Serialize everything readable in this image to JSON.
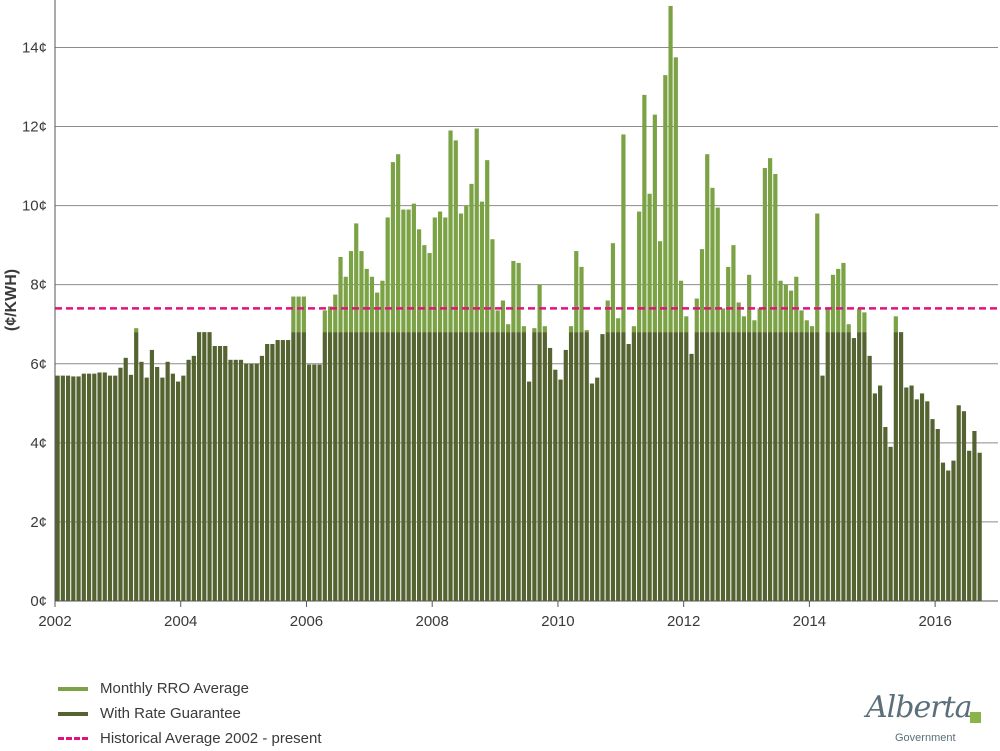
{
  "chart_data": {
    "type": "bar",
    "ylabel": "(¢/KWH)",
    "ylim": [
      0,
      15.2
    ],
    "xlim": [
      "2002-01",
      "2016-12"
    ],
    "y_ticks": [
      "0¢",
      "2¢",
      "4¢",
      "6¢",
      "8¢",
      "10¢",
      "12¢",
      "14¢"
    ],
    "x_ticks": [
      "2002",
      "2004",
      "2006",
      "2008",
      "2010",
      "2012",
      "2014",
      "2016"
    ],
    "grid": true,
    "legend_position": "bottom-left",
    "start_month": "2002-01",
    "series": [
      {
        "name": "Monthly RRO Average",
        "color": "#7ba245",
        "values": [
          5.7,
          5.7,
          5.7,
          5.68,
          5.68,
          5.75,
          5.75,
          5.75,
          5.78,
          5.78,
          5.7,
          5.7,
          5.9,
          6.15,
          5.72,
          6.9,
          6.05,
          5.65,
          6.35,
          5.92,
          5.65,
          6.05,
          5.75,
          5.55,
          5.7,
          6.1,
          6.2,
          6.8,
          6.8,
          6.8,
          6.45,
          6.45,
          6.45,
          6.1,
          6.1,
          6.1,
          6.0,
          6.0,
          6.0,
          6.2,
          6.5,
          6.5,
          6.6,
          6.6,
          6.6,
          7.7,
          7.7,
          7.7,
          5.98,
          5.98,
          5.98,
          7.35,
          7.45,
          7.75,
          8.7,
          8.2,
          8.85,
          9.55,
          8.85,
          8.4,
          8.2,
          7.8,
          8.1,
          9.7,
          11.1,
          11.3,
          9.9,
          9.9,
          10.05,
          9.4,
          9.0,
          8.8,
          9.7,
          9.85,
          9.7,
          11.9,
          11.65,
          9.8,
          10.0,
          10.55,
          11.95,
          10.1,
          11.15,
          9.15,
          7.35,
          7.6,
          7.0,
          8.6,
          8.55,
          6.95,
          5.55,
          6.9,
          8.0,
          6.95,
          6.4,
          5.85,
          5.6,
          6.35,
          6.95,
          8.85,
          8.45,
          6.85,
          5.5,
          5.65,
          6.75,
          7.6,
          9.05,
          7.15,
          11.8,
          6.5,
          6.95,
          9.85,
          12.8,
          10.3,
          12.3,
          9.1,
          13.3,
          15.05,
          13.75,
          8.1,
          7.2,
          6.25,
          7.65,
          8.9,
          11.3,
          10.45,
          9.95,
          7.4,
          8.45,
          9.0,
          7.55,
          7.2,
          8.25,
          7.1,
          7.4,
          10.95,
          11.2,
          10.8,
          8.1,
          8.0,
          7.85,
          8.2,
          7.35,
          7.1,
          6.95,
          9.8,
          5.7,
          7.4,
          8.25,
          8.4,
          8.55,
          7.0,
          6.65,
          7.4,
          7.3,
          6.2,
          5.25,
          5.45,
          4.4,
          3.9,
          7.2,
          6.8,
          5.4,
          5.45,
          5.1,
          5.25,
          5.05,
          4.6,
          4.35,
          3.5,
          3.3,
          3.55,
          4.95,
          4.8,
          3.8,
          4.3,
          3.75
        ]
      },
      {
        "name": "With Rate Guarantee",
        "color": "#546330",
        "cap": 6.8
      },
      {
        "name": "Historical Average 2002 - present",
        "color": "#e0127c",
        "value": 7.4
      }
    ]
  },
  "logo": {
    "script": "Alberta",
    "sub": "Government"
  }
}
